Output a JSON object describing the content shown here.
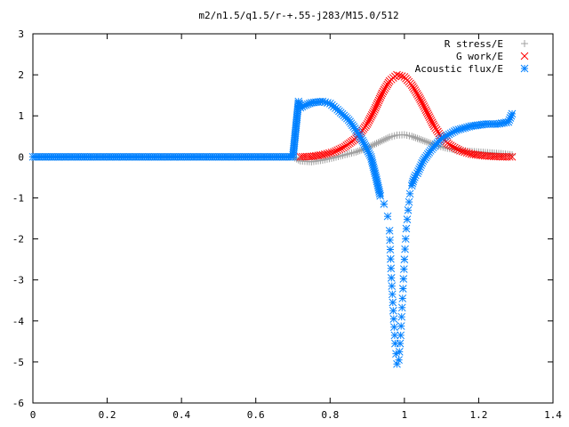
{
  "chart_data": {
    "type": "scatter",
    "title": "m2/n1.5/q1.5/r-+.55-j283/M15.0/512",
    "xlabel": "",
    "ylabel": "",
    "xlim": [
      0,
      1.4
    ],
    "ylim": [
      -6,
      3
    ],
    "xticks": [
      0,
      0.2,
      0.4,
      0.6,
      0.8,
      1,
      1.2,
      1.4
    ],
    "xtick_labels": [
      "0",
      "0.2",
      "0.4",
      "0.6",
      "0.8",
      "1",
      "1.2",
      "1.4"
    ],
    "yticks": [
      -6,
      -5,
      -4,
      -3,
      -2,
      -1,
      0,
      1,
      2,
      3
    ],
    "ytick_labels": [
      "-6",
      "-5",
      "-4",
      "-3",
      "-2",
      "-1",
      "0",
      "1",
      "2",
      "3"
    ],
    "grid": false,
    "legend_position": "top-right",
    "series": [
      {
        "name": "R stress/E",
        "marker": "plus",
        "color": "#a0a0a0",
        "x": [
          0.0,
          0.1,
          0.2,
          0.3,
          0.4,
          0.5,
          0.6,
          0.7,
          0.72,
          0.75,
          0.78,
          0.81,
          0.84,
          0.87,
          0.9,
          0.93,
          0.96,
          0.98,
          1.0,
          1.02,
          1.05,
          1.08,
          1.11,
          1.14,
          1.17,
          1.2,
          1.23,
          1.26,
          1.29
        ],
        "y": [
          0,
          0,
          0,
          0,
          0,
          0,
          0,
          0,
          -0.1,
          -0.12,
          -0.08,
          -0.02,
          0.05,
          0.12,
          0.22,
          0.35,
          0.48,
          0.53,
          0.54,
          0.5,
          0.4,
          0.3,
          0.22,
          0.17,
          0.14,
          0.12,
          0.1,
          0.08,
          0.05
        ]
      },
      {
        "name": "G work/E",
        "marker": "cross",
        "color": "#ff0000",
        "x": [
          0.72,
          0.75,
          0.78,
          0.81,
          0.84,
          0.87,
          0.9,
          0.92,
          0.94,
          0.96,
          0.98,
          1.0,
          1.02,
          1.04,
          1.06,
          1.08,
          1.1,
          1.12,
          1.15,
          1.18,
          1.21,
          1.24,
          1.27,
          1.29
        ],
        "y": [
          0.0,
          0.01,
          0.05,
          0.12,
          0.25,
          0.45,
          0.8,
          1.15,
          1.55,
          1.85,
          2.0,
          1.95,
          1.75,
          1.45,
          1.1,
          0.75,
          0.48,
          0.3,
          0.15,
          0.07,
          0.03,
          0.01,
          0.0,
          0.0
        ]
      },
      {
        "name": "Acoustic flux/E",
        "marker": "star",
        "color": "#0080ff",
        "x": [
          0.0,
          0.1,
          0.2,
          0.3,
          0.4,
          0.5,
          0.6,
          0.7,
          0.715,
          0.72,
          0.73,
          0.75,
          0.78,
          0.8,
          0.82,
          0.85,
          0.87,
          0.89,
          0.91,
          0.925,
          0.935,
          0.945,
          0.955,
          0.96,
          0.965,
          0.97,
          0.975,
          0.98,
          0.985,
          0.99,
          0.995,
          1.0,
          1.005,
          1.01,
          1.015,
          1.02,
          1.025,
          1.03,
          1.035,
          1.04,
          1.05,
          1.07,
          1.1,
          1.14,
          1.18,
          1.22,
          1.25,
          1.28,
          1.29
        ],
        "y": [
          0,
          0,
          0,
          0,
          0,
          0,
          0,
          0,
          1.35,
          1.2,
          1.25,
          1.32,
          1.35,
          1.3,
          1.15,
          0.9,
          0.65,
          0.35,
          0.0,
          -0.55,
          -0.95,
          -1.15,
          -1.45,
          -1.8,
          -2.95,
          -3.75,
          -4.55,
          -5.05,
          -4.95,
          -4.35,
          -3.45,
          -2.5,
          -1.75,
          -1.3,
          -0.9,
          -0.7,
          -0.55,
          -0.45,
          -0.4,
          -0.3,
          -0.1,
          0.15,
          0.45,
          0.65,
          0.75,
          0.8,
          0.8,
          0.85,
          1.05
        ]
      }
    ]
  }
}
